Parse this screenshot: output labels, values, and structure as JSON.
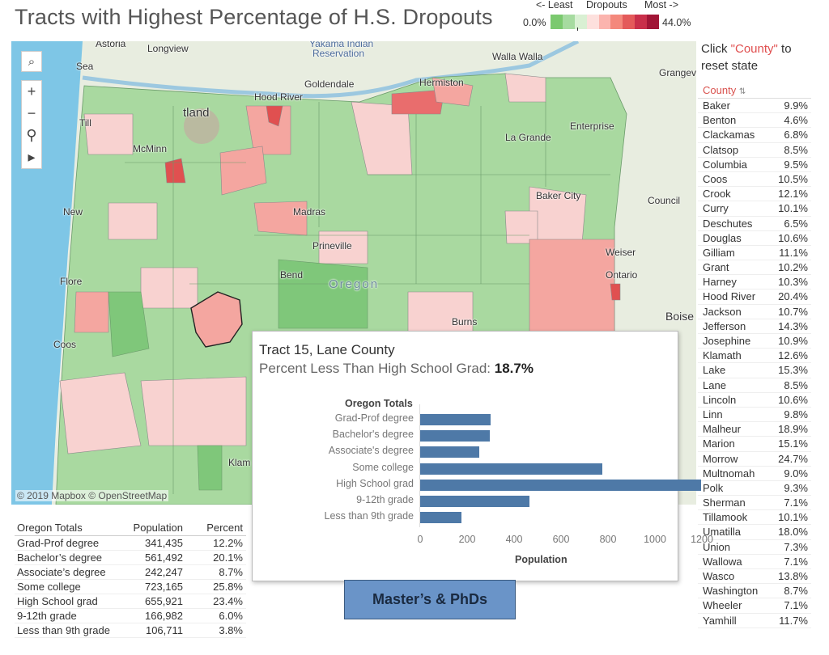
{
  "title": "Tracts with Highest Percentage of H.S. Dropouts",
  "legend": {
    "left_label": "<- Least",
    "mid_label": "Dropouts",
    "right_label": "Most ->",
    "min": "0.0%",
    "max": "44.0%",
    "colors": [
      "#7bc96f",
      "#a6dba0",
      "#d9f0d3",
      "#fde0dd",
      "#fbb4ae",
      "#f4887c",
      "#e45a5a",
      "#c92f4a",
      "#a11536"
    ]
  },
  "map": {
    "labels": {
      "astoria": "Astoria",
      "longview": "Longview",
      "yakama": "Yakama Indian",
      "reservation": "Reservation",
      "sea": "Sea",
      "walla_walla": "Walla Walla",
      "goldendale": "Goldendale",
      "hermiston": "Hermiston",
      "grangeville": "Grangev",
      "hood_river": "Hood River",
      "portland": "tland",
      "tillamook": "Till",
      "mcminnville": "McMinn",
      "enterprise": "Enterprise",
      "la_grande": "La Grande",
      "baker_city": "Baker City",
      "council": "Council",
      "newport": "New",
      "madras": "Madras",
      "prineville": "Prineville",
      "weiser": "Weiser",
      "bend": "Bend",
      "oregon": "Oregon",
      "ontario": "Ontario",
      "florence": "Flore",
      "boise": "Boise",
      "burns": "Burns",
      "coos": "Coos",
      "klamath": "Klam"
    },
    "copyright": "© 2019 Mapbox © OpenStreetMap"
  },
  "toolbar": {
    "search": "⌕",
    "zoom_in": "+",
    "zoom_out": "−",
    "pin": "⚲",
    "play": "▸"
  },
  "hint": {
    "line1_a": "Click ",
    "line1_b": "\"County\"",
    "line1_c": " to",
    "line2": "reset state"
  },
  "county_table": {
    "header": "County",
    "rows": [
      {
        "name": "Baker",
        "value": "9.9%"
      },
      {
        "name": "Benton",
        "value": "4.6%"
      },
      {
        "name": "Clackamas",
        "value": "6.8%"
      },
      {
        "name": "Clatsop",
        "value": "8.5%"
      },
      {
        "name": "Columbia",
        "value": "9.5%"
      },
      {
        "name": "Coos",
        "value": "10.5%"
      },
      {
        "name": "Crook",
        "value": "12.1%"
      },
      {
        "name": "Curry",
        "value": "10.1%"
      },
      {
        "name": "Deschutes",
        "value": "6.5%"
      },
      {
        "name": "Douglas",
        "value": "10.6%"
      },
      {
        "name": "Gilliam",
        "value": "11.1%"
      },
      {
        "name": "Grant",
        "value": "10.2%"
      },
      {
        "name": "Harney",
        "value": "10.3%"
      },
      {
        "name": "Hood River",
        "value": "20.4%"
      },
      {
        "name": "Jackson",
        "value": "10.7%"
      },
      {
        "name": "Jefferson",
        "value": "14.3%"
      },
      {
        "name": "Josephine",
        "value": "10.9%"
      },
      {
        "name": "Klamath",
        "value": "12.6%"
      },
      {
        "name": "Lake",
        "value": "15.3%"
      },
      {
        "name": "Lane",
        "value": "8.5%"
      },
      {
        "name": "Lincoln",
        "value": "10.6%"
      },
      {
        "name": "Linn",
        "value": "9.8%"
      },
      {
        "name": "Malheur",
        "value": "18.9%"
      },
      {
        "name": "Marion",
        "value": "15.1%"
      },
      {
        "name": "Morrow",
        "value": "24.7%"
      },
      {
        "name": "Multnomah",
        "value": "9.0%"
      },
      {
        "name": "Polk",
        "value": "9.3%"
      },
      {
        "name": "Sherman",
        "value": "7.1%"
      },
      {
        "name": "Tillamook",
        "value": "10.1%"
      },
      {
        "name": "Umatilla",
        "value": "18.0%"
      },
      {
        "name": "Union",
        "value": "7.3%"
      },
      {
        "name": "Wallowa",
        "value": "7.1%"
      },
      {
        "name": "Wasco",
        "value": "13.8%"
      },
      {
        "name": "Washington",
        "value": "8.7%"
      },
      {
        "name": "Wheeler",
        "value": "7.1%"
      },
      {
        "name": "Yamhill",
        "value": "11.7%"
      }
    ]
  },
  "tooltip": {
    "title": "Tract 15, Lane County",
    "subtitle_label": "Percent Less Than High School Grad: ",
    "subtitle_value": "18.7%"
  },
  "chart_data": {
    "type": "bar",
    "orientation": "horizontal",
    "title": "Oregon Totals",
    "categories": [
      "Grad-Prof degree",
      "Bachelor's degree",
      "Associate's degree",
      "Some college",
      "High School grad",
      "9-12th grade",
      "Less than 9th grade"
    ],
    "values": [
      300,
      295,
      250,
      775,
      1195,
      465,
      175
    ],
    "xlabel": "Population",
    "ylabel": "",
    "xlim": [
      0,
      1300
    ],
    "ticks": [
      0,
      200,
      400,
      600,
      800,
      1000,
      1200
    ],
    "color": "#4e79a7",
    "grid": false
  },
  "button": {
    "label": "Master’s & PhDs"
  },
  "totals_table": {
    "headers": [
      "Oregon Totals",
      "Population",
      "Percent"
    ],
    "rows": [
      [
        "Grad-Prof degree",
        "341,435",
        "12.2%"
      ],
      [
        "Bachelor’s degree",
        "561,492",
        "20.1%"
      ],
      [
        "Associate’s degree",
        "242,247",
        "8.7%"
      ],
      [
        "Some college",
        "723,165",
        "25.8%"
      ],
      [
        "High School grad",
        "655,921",
        "23.4%"
      ],
      [
        "9-12th grade",
        "166,982",
        "6.0%"
      ],
      [
        "Less than 9th grade",
        "106,711",
        "3.8%"
      ]
    ]
  }
}
